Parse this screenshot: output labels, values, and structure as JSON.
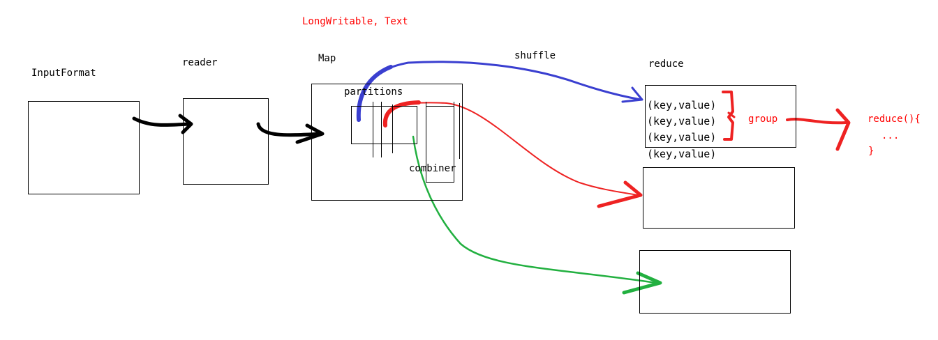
{
  "header_annotation": "LongWritable, Text",
  "stages": {
    "input_format": "InputFormat",
    "reader": "reader",
    "map": "Map",
    "shuffle": "shuffle",
    "reduce": "reduce"
  },
  "map_internals": {
    "partitions": "partitions",
    "combiner": "combiner"
  },
  "reduce_records": [
    "(key,value)",
    "(key,value)",
    "(key,value)",
    "(key,value)"
  ],
  "group_label": "group",
  "reduce_function": {
    "line1": "reduce(){",
    "line2": "...",
    "line3": "}"
  },
  "colors": {
    "text": "#000000",
    "annotation": "#ff0000",
    "arrow_black": "#000000",
    "arrow_blue": "#3a3fd0",
    "arrow_red": "#ee2222",
    "arrow_green": "#22b040"
  }
}
